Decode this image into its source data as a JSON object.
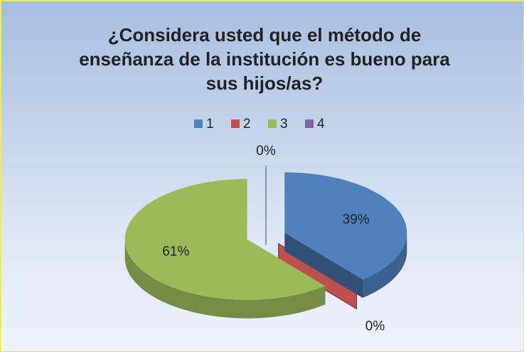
{
  "chart_data": {
    "type": "pie",
    "title": "¿Considera usted que el método de enseñanza de la institución es bueno para sus hijos/as?",
    "categories": [
      "1",
      "2",
      "3",
      "4"
    ],
    "values": [
      39,
      0,
      61,
      0
    ],
    "value_labels": [
      "39%",
      "0%",
      "61%",
      "0%"
    ],
    "colors": [
      "#4f81bd",
      "#c0504d",
      "#9bbb59",
      "#8064a2"
    ],
    "legend": "top"
  }
}
